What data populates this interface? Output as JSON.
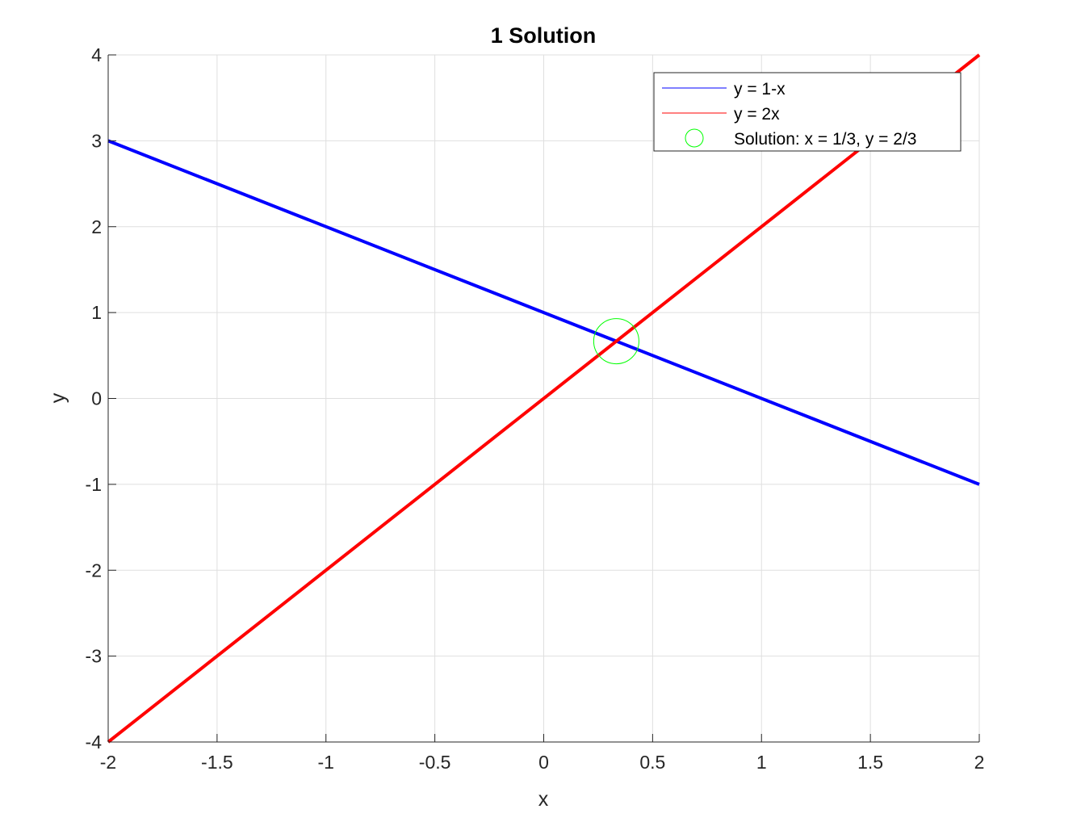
{
  "chart_data": {
    "type": "line",
    "title": "1 Solution",
    "xlabel": "x",
    "ylabel": "y",
    "xlim": [
      -2,
      2
    ],
    "ylim": [
      -4,
      4
    ],
    "grid": true,
    "legend_position": "top-right",
    "xticks": [
      -2,
      -1.5,
      -1,
      -0.5,
      0,
      0.5,
      1,
      1.5,
      2
    ],
    "xtick_labels": [
      "-2",
      "-1.5",
      "-1",
      "-0.5",
      "0",
      "0.5",
      "1",
      "1.5",
      "2"
    ],
    "yticks": [
      -4,
      -3,
      -2,
      -1,
      0,
      1,
      2,
      3,
      4
    ],
    "ytick_labels": [
      "-4",
      "-3",
      "-2",
      "-1",
      "0",
      "1",
      "2",
      "3",
      "4"
    ],
    "series": [
      {
        "name": "y = 1-x",
        "kind": "line",
        "color": "#0000ff",
        "x": [
          -2,
          2
        ],
        "y": [
          3,
          -1
        ]
      },
      {
        "name": "y = 2x",
        "kind": "line",
        "color": "#ff0000",
        "x": [
          -2,
          2
        ],
        "y": [
          -4,
          4
        ]
      },
      {
        "name": "Solution: x = 1/3, y = 2/3",
        "kind": "marker",
        "marker": "circle",
        "color": "#00ff00",
        "x": [
          0.3333
        ],
        "y": [
          0.6667
        ]
      }
    ]
  }
}
